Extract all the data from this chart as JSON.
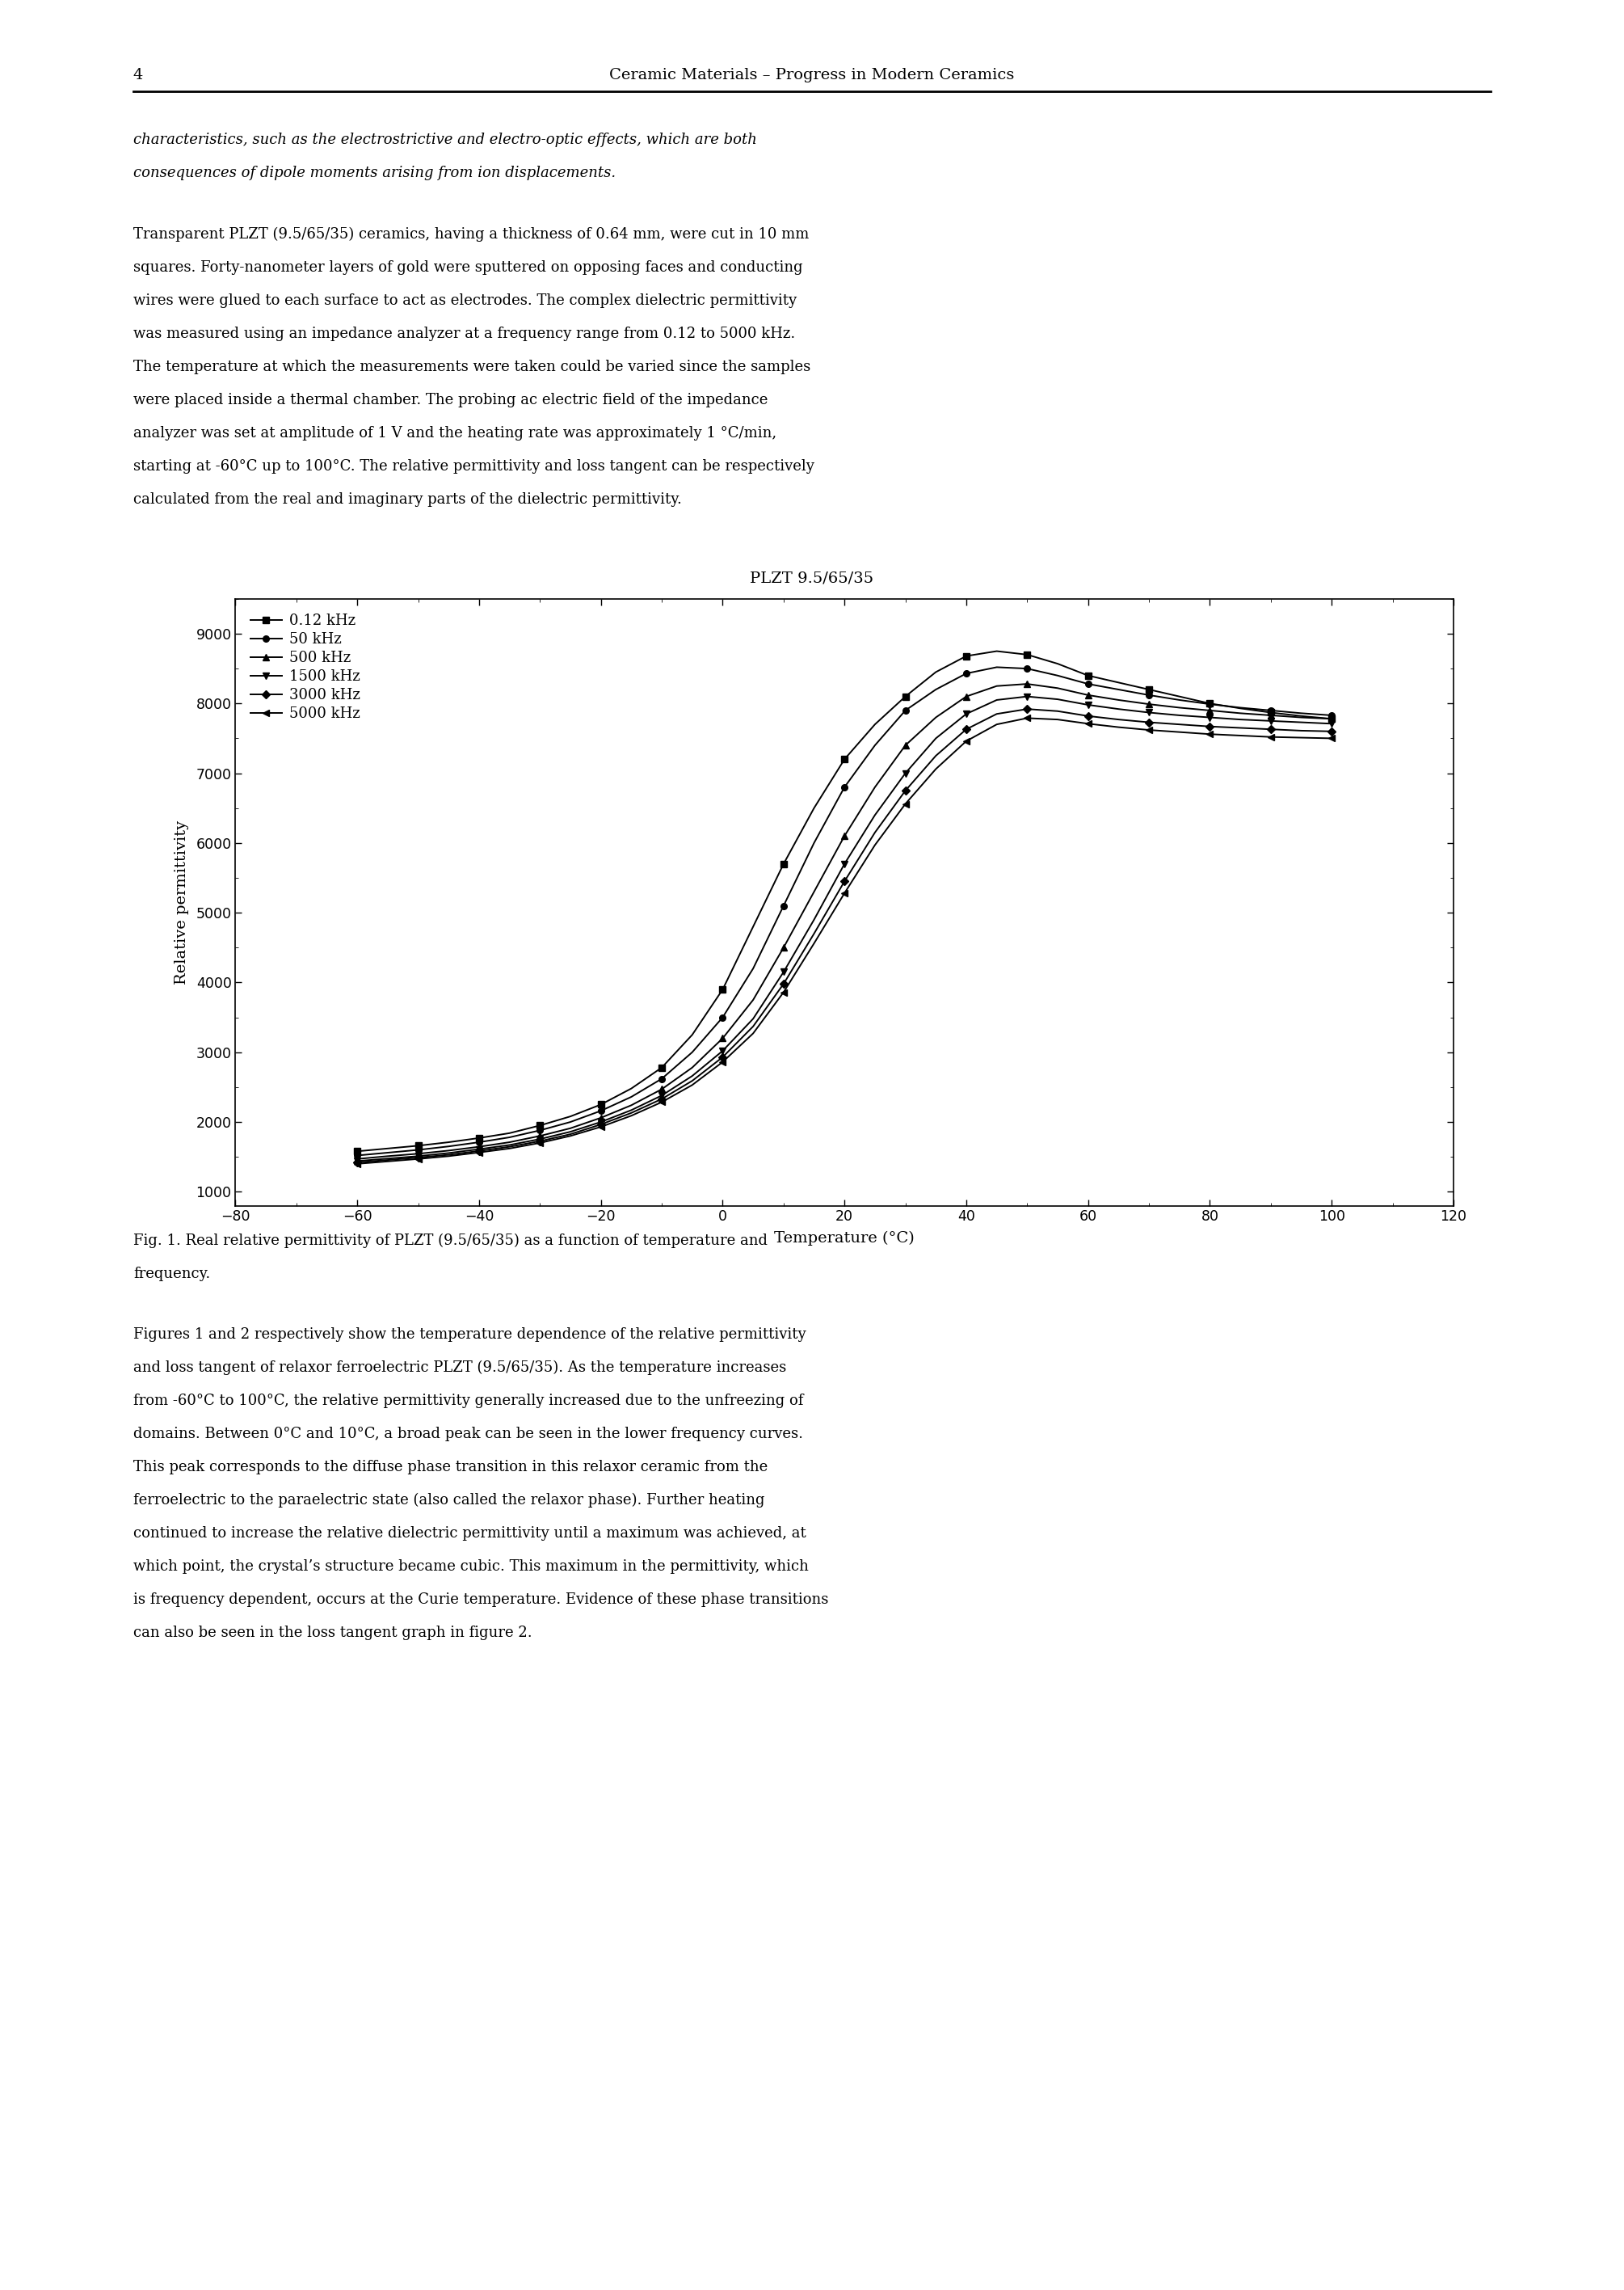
{
  "page_number": "4",
  "header_title": "Ceramic Materials – Progress in Modern Ceramics",
  "paragraph1_lines": [
    "characteristics, such as the electrostrictive and electro-optic effects, which are both",
    "consequences of dipole moments arising from ion displacements."
  ],
  "paragraph2_lines": [
    "Transparent PLZT (9.5/65/35) ceramics, having a thickness of 0.64 mm, were cut in 10 mm",
    "squares. Forty-nanometer layers of gold were sputtered on opposing faces and conducting",
    "wires were glued to each surface to act as electrodes. The complex dielectric permittivity",
    "was measured using an impedance analyzer at a frequency range from 0.12 to 5000 kHz.",
    "The temperature at which the measurements were taken could be varied since the samples",
    "were placed inside a thermal chamber. The probing ac electric field of the impedance",
    "analyzer was set at amplitude of 1 V and the heating rate was approximately 1 °C/min,",
    "starting at -60°C up to 100°C. The relative permittivity and loss tangent can be respectively",
    "calculated from the real and imaginary parts of the dielectric permittivity."
  ],
  "chart_title": "PLZT 9.5/65/35",
  "xlabel": "Temperature (°C)",
  "ylabel": "Relative permittivity",
  "xlim": [
    -80,
    120
  ],
  "ylim": [
    800,
    9500
  ],
  "xticks": [
    -80,
    -60,
    -40,
    -20,
    0,
    20,
    40,
    60,
    80,
    100,
    120
  ],
  "yticks": [
    1000,
    2000,
    3000,
    4000,
    5000,
    6000,
    7000,
    8000,
    9000
  ],
  "figcaption_lines": [
    "Fig. 1. Real relative permittivity of PLZT (9.5/65/35) as a function of temperature and",
    "frequency."
  ],
  "body_text_lines": [
    "Figures 1 and 2 respectively show the temperature dependence of the relative permittivity",
    "and loss tangent of relaxor ferroelectric PLZT (9.5/65/35). As the temperature increases",
    "from -60°C to 100°C, the relative permittivity generally increased due to the unfreezing of",
    "domains. Between 0°C and 10°C, a broad peak can be seen in the lower frequency curves.",
    "This peak corresponds to the diffuse phase transition in this relaxor ceramic from the",
    "ferroelectric to the paraelectric state (also called the relaxor phase). Further heating",
    "continued to increase the relative dielectric permittivity until a maximum was achieved, at",
    "which point, the crystal’s structure became cubic. This maximum in the permittivity, which",
    "is frequency dependent, occurs at the Curie temperature. Evidence of these phase transitions",
    "can also be seen in the loss tangent graph in figure 2."
  ],
  "frequencies": [
    "0.12 kHz",
    "50 kHz",
    "500 kHz",
    "1500 kHz",
    "3000 kHz",
    "5000 kHz"
  ],
  "markers": [
    "s",
    "o",
    "^",
    "v",
    "D",
    "<"
  ],
  "temp_points": [
    -60,
    -55,
    -50,
    -45,
    -40,
    -35,
    -30,
    -25,
    -20,
    -15,
    -10,
    -5,
    0,
    5,
    10,
    15,
    20,
    25,
    30,
    35,
    40,
    45,
    50,
    55,
    60,
    65,
    70,
    75,
    80,
    85,
    90,
    95,
    100
  ],
  "curves": {
    "0.12 kHz": [
      1580,
      1620,
      1660,
      1710,
      1770,
      1840,
      1950,
      2080,
      2250,
      2480,
      2780,
      3250,
      3900,
      4800,
      5700,
      6500,
      7200,
      7700,
      8100,
      8450,
      8680,
      8750,
      8700,
      8570,
      8400,
      8300,
      8200,
      8100,
      8000,
      7930,
      7870,
      7820,
      7780
    ],
    "50 kHz": [
      1520,
      1560,
      1600,
      1650,
      1710,
      1780,
      1880,
      2000,
      2160,
      2360,
      2620,
      3000,
      3500,
      4200,
      5100,
      6000,
      6800,
      7400,
      7900,
      8200,
      8430,
      8520,
      8500,
      8400,
      8280,
      8200,
      8120,
      8050,
      7990,
      7940,
      7900,
      7860,
      7830
    ],
    "500 kHz": [
      1470,
      1510,
      1545,
      1590,
      1645,
      1710,
      1800,
      1910,
      2060,
      2240,
      2470,
      2780,
      3200,
      3750,
      4500,
      5300,
      6100,
      6800,
      7400,
      7800,
      8100,
      8250,
      8280,
      8220,
      8120,
      8050,
      7990,
      7940,
      7900,
      7860,
      7830,
      7800,
      7780
    ],
    "1500 kHz": [
      1440,
      1475,
      1510,
      1555,
      1610,
      1670,
      1755,
      1860,
      2000,
      2170,
      2380,
      2660,
      3020,
      3480,
      4150,
      4900,
      5700,
      6400,
      7000,
      7500,
      7850,
      8050,
      8100,
      8060,
      7980,
      7920,
      7870,
      7830,
      7800,
      7770,
      7750,
      7730,
      7710
    ],
    "3000 kHz": [
      1420,
      1455,
      1490,
      1530,
      1585,
      1645,
      1725,
      1825,
      1965,
      2130,
      2330,
      2590,
      2930,
      3370,
      3980,
      4700,
      5450,
      6150,
      6750,
      7250,
      7630,
      7850,
      7920,
      7890,
      7820,
      7770,
      7730,
      7700,
      7670,
      7650,
      7630,
      7610,
      7600
    ],
    "5000 kHz": [
      1400,
      1435,
      1470,
      1510,
      1563,
      1620,
      1700,
      1800,
      1930,
      2090,
      2285,
      2530,
      2860,
      3270,
      3860,
      4560,
      5280,
      5970,
      6560,
      7060,
      7460,
      7700,
      7790,
      7770,
      7710,
      7660,
      7620,
      7590,
      7560,
      7540,
      7520,
      7510,
      7500
    ]
  }
}
